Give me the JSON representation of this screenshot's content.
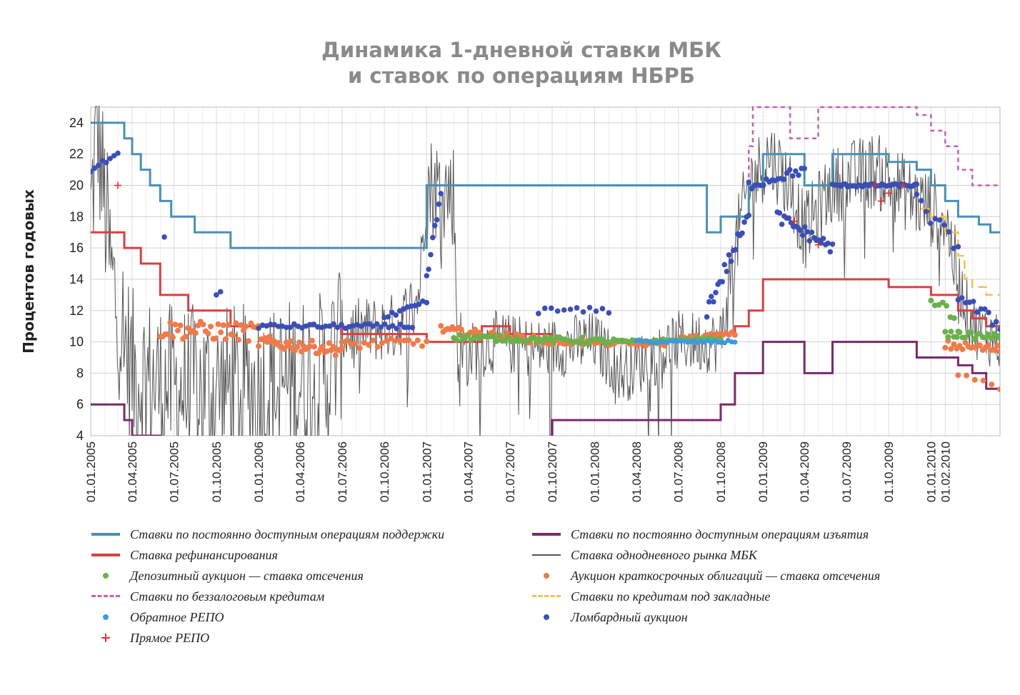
{
  "chart_data": {
    "type": "line",
    "title_line1": "Динамика 1-дневной ставки МБК",
    "title_line2": "и ставок по операциям НБРБ",
    "ylabel": "Процентов годовых",
    "ylim": [
      4,
      25
    ],
    "yticks": [
      "4",
      "6",
      "8",
      "10",
      "12",
      "14",
      "16",
      "18",
      "20",
      "22",
      "24"
    ],
    "xticks": [
      "01.01.2005",
      "01.04.2005",
      "01.07.2005",
      "01.10.2005",
      "01.01.2006",
      "01.04.2006",
      "01.07.2006",
      "01.10.2006",
      "01.01.2007",
      "01.04.2007",
      "01.07.2007",
      "01.10.2007",
      "01.01.2008",
      "01.04.2008",
      "01.07.2008",
      "01.10.2008",
      "01.01.2009",
      "01.04.2009",
      "01.07.2009",
      "01.10.2009",
      "01.01.2010",
      "01.02.2010"
    ],
    "colors": {
      "support": "#4a8fb5",
      "refinancing": "#d94040",
      "withdrawal": "#7a2a6a",
      "mbk": "#555555",
      "deposit": "#6ab04c",
      "bonds": "#f07a4a",
      "unsecured": "#c85fb5",
      "mortgage": "#f2c14e",
      "reverse_repo": "#3a9ae0",
      "lombard": "#3a4fb5",
      "direct_repo": "#e03030"
    },
    "series": [
      {
        "key": "support",
        "name": "Ставки по постоянно доступным операциям поддержки",
        "style": "line",
        "points": [
          [
            "01.01.2005",
            24
          ],
          [
            "15.03.2005",
            24
          ],
          [
            "15.03.2005",
            23
          ],
          [
            "01.04.2005",
            23
          ],
          [
            "01.04.2005",
            22
          ],
          [
            "20.04.2005",
            22
          ],
          [
            "20.04.2005",
            21
          ],
          [
            "10.05.2005",
            21
          ],
          [
            "10.05.2005",
            20
          ],
          [
            "01.06.2005",
            20
          ],
          [
            "01.06.2005",
            19
          ],
          [
            "25.06.2005",
            19
          ],
          [
            "25.06.2005",
            18
          ],
          [
            "15.08.2005",
            18
          ],
          [
            "15.08.2005",
            17
          ],
          [
            "01.11.2005",
            17
          ],
          [
            "01.11.2005",
            16
          ],
          [
            "01.01.2007",
            16
          ],
          [
            "01.01.2007",
            20
          ],
          [
            "01.09.2008",
            20
          ],
          [
            "01.09.2008",
            17
          ],
          [
            "01.10.2008",
            17
          ],
          [
            "01.10.2008",
            18
          ],
          [
            "01.12.2008",
            18
          ],
          [
            "01.12.2008",
            20
          ],
          [
            "01.01.2009",
            20
          ],
          [
            "01.01.2009",
            22
          ],
          [
            "01.04.2009",
            22
          ],
          [
            "01.04.2009",
            20
          ],
          [
            "01.06.2009",
            20
          ],
          [
            "01.06.2009",
            22
          ],
          [
            "01.10.2009",
            22
          ],
          [
            "01.10.2009",
            21.5
          ],
          [
            "01.12.2009",
            21.5
          ],
          [
            "01.12.2009",
            21
          ],
          [
            "01.01.2010",
            21
          ],
          [
            "01.01.2010",
            20
          ],
          [
            "01.02.2010",
            20
          ],
          [
            "01.02.2010",
            19
          ],
          [
            "01.03.2010",
            19
          ],
          [
            "01.03.2010",
            18
          ],
          [
            "15.04.2010",
            18
          ],
          [
            "15.04.2010",
            17.5
          ],
          [
            "10.05.2010",
            17.5
          ],
          [
            "10.05.2010",
            17
          ],
          [
            "31.05.2010",
            17
          ]
        ]
      },
      {
        "key": "withdrawal",
        "name": "Ставки по постоянно доступным операциям изъятия",
        "style": "line",
        "points": [
          [
            "01.01.2005",
            6
          ],
          [
            "15.03.2005",
            6
          ],
          [
            "15.03.2005",
            5
          ],
          [
            "01.04.2005",
            5
          ],
          [
            "01.04.2005",
            4
          ],
          [
            "01.06.2005",
            4
          ],
          [
            "01.06.2005",
            3
          ],
          [
            "01.01.2007",
            3
          ],
          [
            "01.01.2007",
            1
          ],
          [
            "01.10.2007",
            1
          ],
          [
            "01.10.2007",
            5
          ],
          [
            "01.10.2008",
            5
          ],
          [
            "01.10.2008",
            6
          ],
          [
            "01.11.2008",
            6
          ],
          [
            "01.11.2008",
            8
          ],
          [
            "01.01.2009",
            8
          ],
          [
            "01.01.2009",
            10
          ],
          [
            "01.04.2009",
            10
          ],
          [
            "01.04.2009",
            8
          ],
          [
            "01.06.2009",
            8
          ],
          [
            "01.06.2009",
            10
          ],
          [
            "01.12.2009",
            10
          ],
          [
            "01.12.2009",
            9
          ],
          [
            "01.03.2010",
            9
          ],
          [
            "01.03.2010",
            8.5
          ],
          [
            "01.04.2010",
            8.5
          ],
          [
            "01.04.2010",
            8
          ],
          [
            "01.05.2010",
            8
          ],
          [
            "01.05.2010",
            7
          ],
          [
            "31.05.2010",
            7
          ]
        ]
      },
      {
        "key": "refinancing",
        "name": "Ставка рефинансирования",
        "style": "line",
        "points": [
          [
            "01.01.2005",
            17
          ],
          [
            "15.03.2005",
            17
          ],
          [
            "15.03.2005",
            16
          ],
          [
            "20.04.2005",
            16
          ],
          [
            "20.04.2005",
            15
          ],
          [
            "01.06.2005",
            15
          ],
          [
            "01.06.2005",
            13
          ],
          [
            "01.08.2005",
            13
          ],
          [
            "01.08.2005",
            12
          ],
          [
            "01.11.2005",
            12
          ],
          [
            "01.11.2005",
            11
          ],
          [
            "01.07.2006",
            11
          ],
          [
            "01.07.2006",
            10.5
          ],
          [
            "01.01.2007",
            10.5
          ],
          [
            "01.01.2007",
            10
          ],
          [
            "01.05.2007",
            10
          ],
          [
            "01.05.2007",
            11
          ],
          [
            "01.07.2007",
            11
          ],
          [
            "01.07.2007",
            10.5
          ],
          [
            "01.10.2007",
            10.5
          ],
          [
            "01.10.2007",
            10
          ],
          [
            "01.10.2008",
            10
          ],
          [
            "01.10.2008",
            10.5
          ],
          [
            "01.11.2008",
            10.5
          ],
          [
            "01.11.2008",
            11
          ],
          [
            "01.12.2008",
            11
          ],
          [
            "01.12.2008",
            12
          ],
          [
            "01.01.2009",
            12
          ],
          [
            "01.01.2009",
            14
          ],
          [
            "01.10.2009",
            14
          ],
          [
            "01.10.2009",
            13.5
          ],
          [
            "01.01.2010",
            13.5
          ],
          [
            "01.01.2010",
            13
          ],
          [
            "01.03.2010",
            13
          ],
          [
            "01.03.2010",
            12
          ],
          [
            "01.04.2010",
            12
          ],
          [
            "01.04.2010",
            11.5
          ],
          [
            "01.05.2010",
            11.5
          ],
          [
            "01.05.2010",
            11
          ],
          [
            "31.05.2010",
            11
          ]
        ]
      },
      {
        "key": "unsecured",
        "name": "Ставки по беззалоговым кредитам",
        "style": "dash",
        "points": [
          [
            "01.12.2008",
            20
          ],
          [
            "01.12.2008",
            22.5
          ],
          [
            "10.12.2008",
            22.5
          ],
          [
            "10.12.2008",
            25
          ],
          [
            "01.03.2009",
            25
          ],
          [
            "01.03.2009",
            23
          ],
          [
            "01.05.2009",
            23
          ],
          [
            "01.05.2009",
            25
          ],
          [
            "01.12.2009",
            25
          ],
          [
            "01.12.2009",
            24.5
          ],
          [
            "01.01.2010",
            24.5
          ],
          [
            "01.01.2010",
            23.5
          ],
          [
            "01.02.2010",
            23.5
          ],
          [
            "01.02.2010",
            22.5
          ],
          [
            "01.03.2010",
            22.5
          ],
          [
            "01.03.2010",
            21
          ],
          [
            "01.04.2010",
            21
          ],
          [
            "01.04.2010",
            20
          ],
          [
            "31.05.2010",
            20
          ]
        ]
      },
      {
        "key": "mortgage",
        "name": "Ставки по кредитам под закладные",
        "style": "dash",
        "points": [
          [
            "10.12.2009",
            18.5
          ],
          [
            "01.01.2010",
            18.5
          ],
          [
            "01.01.2010",
            18
          ],
          [
            "01.02.2010",
            18
          ],
          [
            "01.02.2010",
            17
          ],
          [
            "01.03.2010",
            17
          ],
          [
            "01.03.2010",
            15.5
          ],
          [
            "15.03.2010",
            15.5
          ],
          [
            "15.03.2010",
            14
          ],
          [
            "01.04.2010",
            14
          ],
          [
            "01.04.2010",
            13.5
          ],
          [
            "01.05.2010",
            13.5
          ],
          [
            "01.05.2010",
            13
          ],
          [
            "31.05.2010",
            13
          ]
        ]
      },
      {
        "key": "mbk",
        "name": "Ставка однодневного рынка МБК",
        "style": "noisy"
      },
      {
        "key": "deposit",
        "name": "Депозитный аукцион — ставка отсечения",
        "style": "dots"
      },
      {
        "key": "bonds",
        "name": "Аукцион краткосрочных облигаций — ставка отсечения",
        "style": "dots"
      },
      {
        "key": "reverse_repo",
        "name": "Обратное РЕПО",
        "style": "dots"
      },
      {
        "key": "lombard",
        "name": "Ломбардный аукцион",
        "style": "dots"
      },
      {
        "key": "direct_repo",
        "name": "Прямое РЕПО",
        "style": "plus"
      }
    ]
  }
}
